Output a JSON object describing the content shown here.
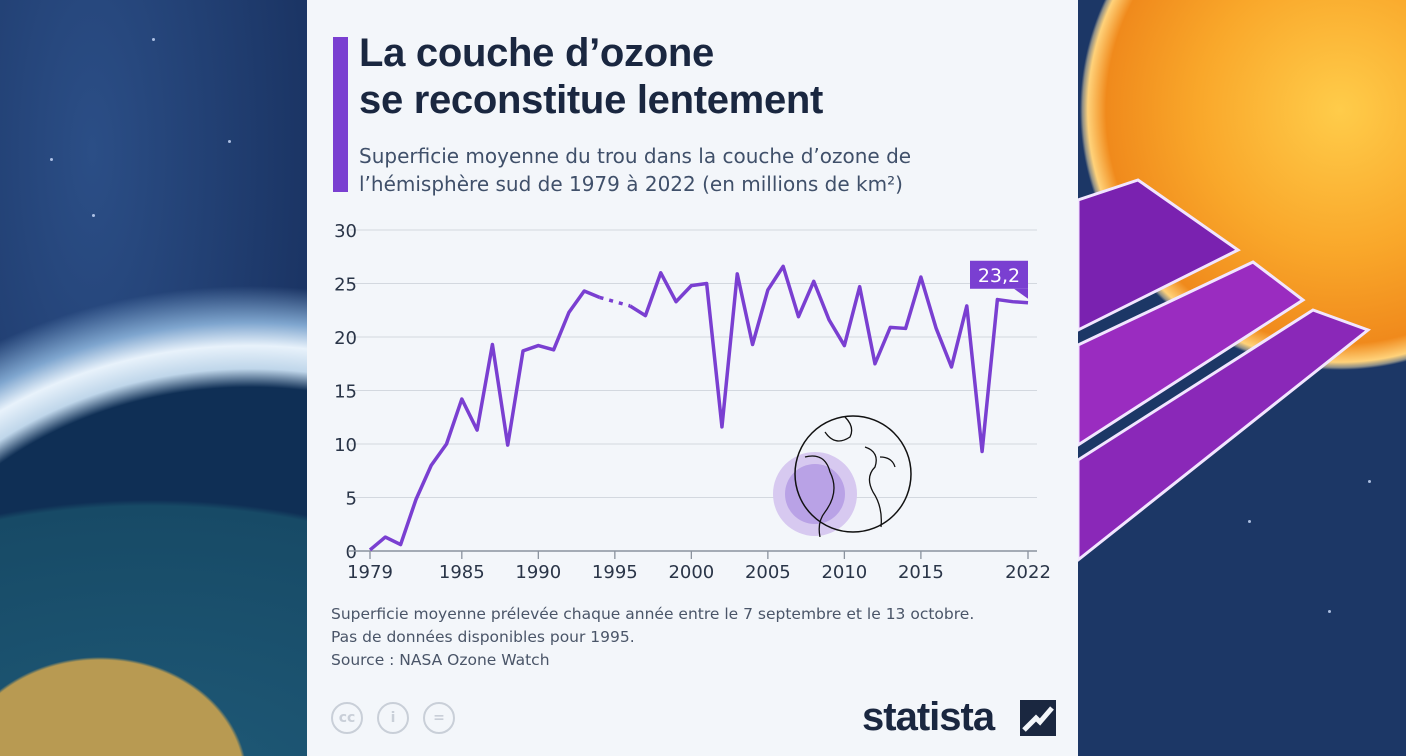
{
  "title_lines": [
    "La couche d’ozone",
    "se reconstitue lentement"
  ],
  "subtitle_lines": [
    "Superficie moyenne du trou dans la couche d’ozone de",
    "l’hémisphère sud de 1979 à 2022 (en millions de km²)"
  ],
  "notes": [
    "Superficie moyenne prélevée chaque année entre le 7 septembre et le 13 octobre.",
    "Pas de données disponibles pour 1995.",
    "Source : NASA Ozone Watch"
  ],
  "footer": {
    "license_icons": [
      "cc-icon",
      "attribution-icon",
      "no-derivatives-icon"
    ],
    "license_glyphs": [
      "cc",
      "i",
      "="
    ],
    "brand": "statista"
  },
  "colors": {
    "line": "#7a3fd1",
    "title": "#1a2740",
    "grid": "#d3d8df"
  },
  "chart_data": {
    "type": "line",
    "title": "La couche d’ozone se reconstitue lentement",
    "ylim": [
      0,
      30
    ],
    "yticks": [
      "0",
      "5",
      "10",
      "15",
      "20",
      "25",
      "30"
    ],
    "xticks": [
      "1979",
      "1985",
      "1990",
      "1995",
      "2000",
      "2005",
      "2010",
      "2015",
      "2022"
    ],
    "grid": true,
    "annotation": {
      "year": 2022,
      "label": "23,2"
    },
    "x": [
      1979,
      1980,
      1981,
      1982,
      1983,
      1984,
      1985,
      1986,
      1987,
      1988,
      1989,
      1990,
      1991,
      1992,
      1993,
      1994,
      1995,
      1996,
      1997,
      1998,
      1999,
      2000,
      2001,
      2002,
      2003,
      2004,
      2005,
      2006,
      2007,
      2008,
      2009,
      2010,
      2011,
      2012,
      2013,
      2014,
      2015,
      2016,
      2017,
      2018,
      2019,
      2020,
      2021,
      2022
    ],
    "values": [
      0.1,
      1.3,
      0.6,
      4.8,
      8.0,
      10.0,
      14.2,
      11.3,
      19.3,
      9.9,
      18.7,
      19.2,
      18.8,
      22.3,
      24.3,
      23.7,
      null,
      22.9,
      22.0,
      26.0,
      23.3,
      24.8,
      25.0,
      11.6,
      25.9,
      19.3,
      24.4,
      26.6,
      21.9,
      25.2,
      21.6,
      19.2,
      24.7,
      17.5,
      20.9,
      20.8,
      25.6,
      20.8,
      17.2,
      22.9,
      9.3,
      23.5,
      23.3,
      23.2
    ]
  }
}
